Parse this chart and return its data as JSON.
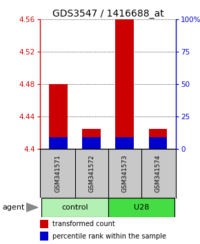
{
  "title": "GDS3547 / 1416688_at",
  "samples": [
    "GSM341571",
    "GSM341572",
    "GSM341573",
    "GSM341574"
  ],
  "groups": [
    {
      "name": "control",
      "indices": [
        0,
        1
      ],
      "color": "#b3f0b3"
    },
    {
      "name": "U28",
      "indices": [
        2,
        3
      ],
      "color": "#44dd44"
    }
  ],
  "red_tops": [
    4.48,
    4.425,
    4.56,
    4.425
  ],
  "red_bottoms": [
    4.4,
    4.4,
    4.4,
    4.4
  ],
  "blue_tops": [
    4.4145,
    4.4145,
    4.4145,
    4.4145
  ],
  "blue_bottoms": [
    4.4,
    4.4,
    4.4,
    4.4
  ],
  "bar_width": 0.55,
  "ylim": [
    4.4,
    4.56
  ],
  "yticks_left": [
    4.4,
    4.44,
    4.48,
    4.52,
    4.56
  ],
  "yticks_right": [
    0,
    25,
    50,
    75,
    100
  ],
  "ytick_labels_right": [
    "0",
    "25",
    "50",
    "75",
    "100%"
  ],
  "left_axis_color": "#cc0000",
  "right_axis_color": "#0000cc",
  "title_fontsize": 10,
  "agent_label": "agent",
  "background_color": "#ffffff",
  "plot_bg": "#ffffff",
  "gray_row_color": "#c8c8c8",
  "legend_red_color": "#cc0000",
  "legend_blue_color": "#0000cc",
  "xlim": [
    -0.55,
    3.55
  ]
}
